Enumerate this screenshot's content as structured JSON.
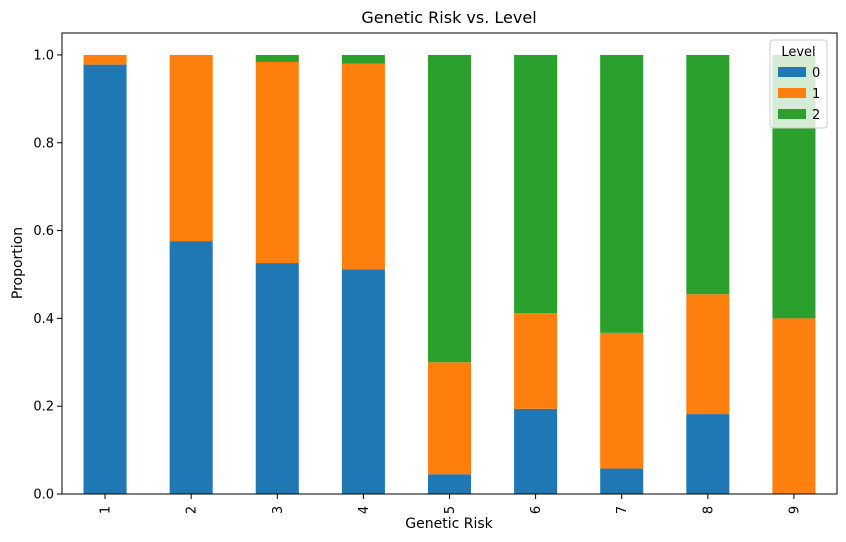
{
  "chart_data": {
    "type": "bar",
    "stacked": true,
    "title": "Genetic Risk vs. Level",
    "xlabel": "Genetic Risk",
    "ylabel": "Proportion",
    "categories": [
      "1",
      "2",
      "3",
      "4",
      "5",
      "6",
      "7",
      "8",
      "9"
    ],
    "ylim": [
      0,
      1.05
    ],
    "yticks": [
      "0.0",
      "0.2",
      "0.4",
      "0.6",
      "0.8",
      "1.0"
    ],
    "legend_title": "Level",
    "legend_position": "top-right",
    "grid": false,
    "series": [
      {
        "name": "0",
        "color": "#1f77b4",
        "values": [
          0.978,
          0.576,
          0.526,
          0.512,
          0.045,
          0.194,
          0.058,
          0.182,
          0.0
        ]
      },
      {
        "name": "1",
        "color": "#ff7f0e",
        "values": [
          0.022,
          0.424,
          0.458,
          0.468,
          0.255,
          0.218,
          0.309,
          0.273,
          0.4
        ]
      },
      {
        "name": "2",
        "color": "#2ca02c",
        "values": [
          0.0,
          0.0,
          0.016,
          0.02,
          0.7,
          0.588,
          0.633,
          0.545,
          0.6
        ]
      }
    ]
  }
}
